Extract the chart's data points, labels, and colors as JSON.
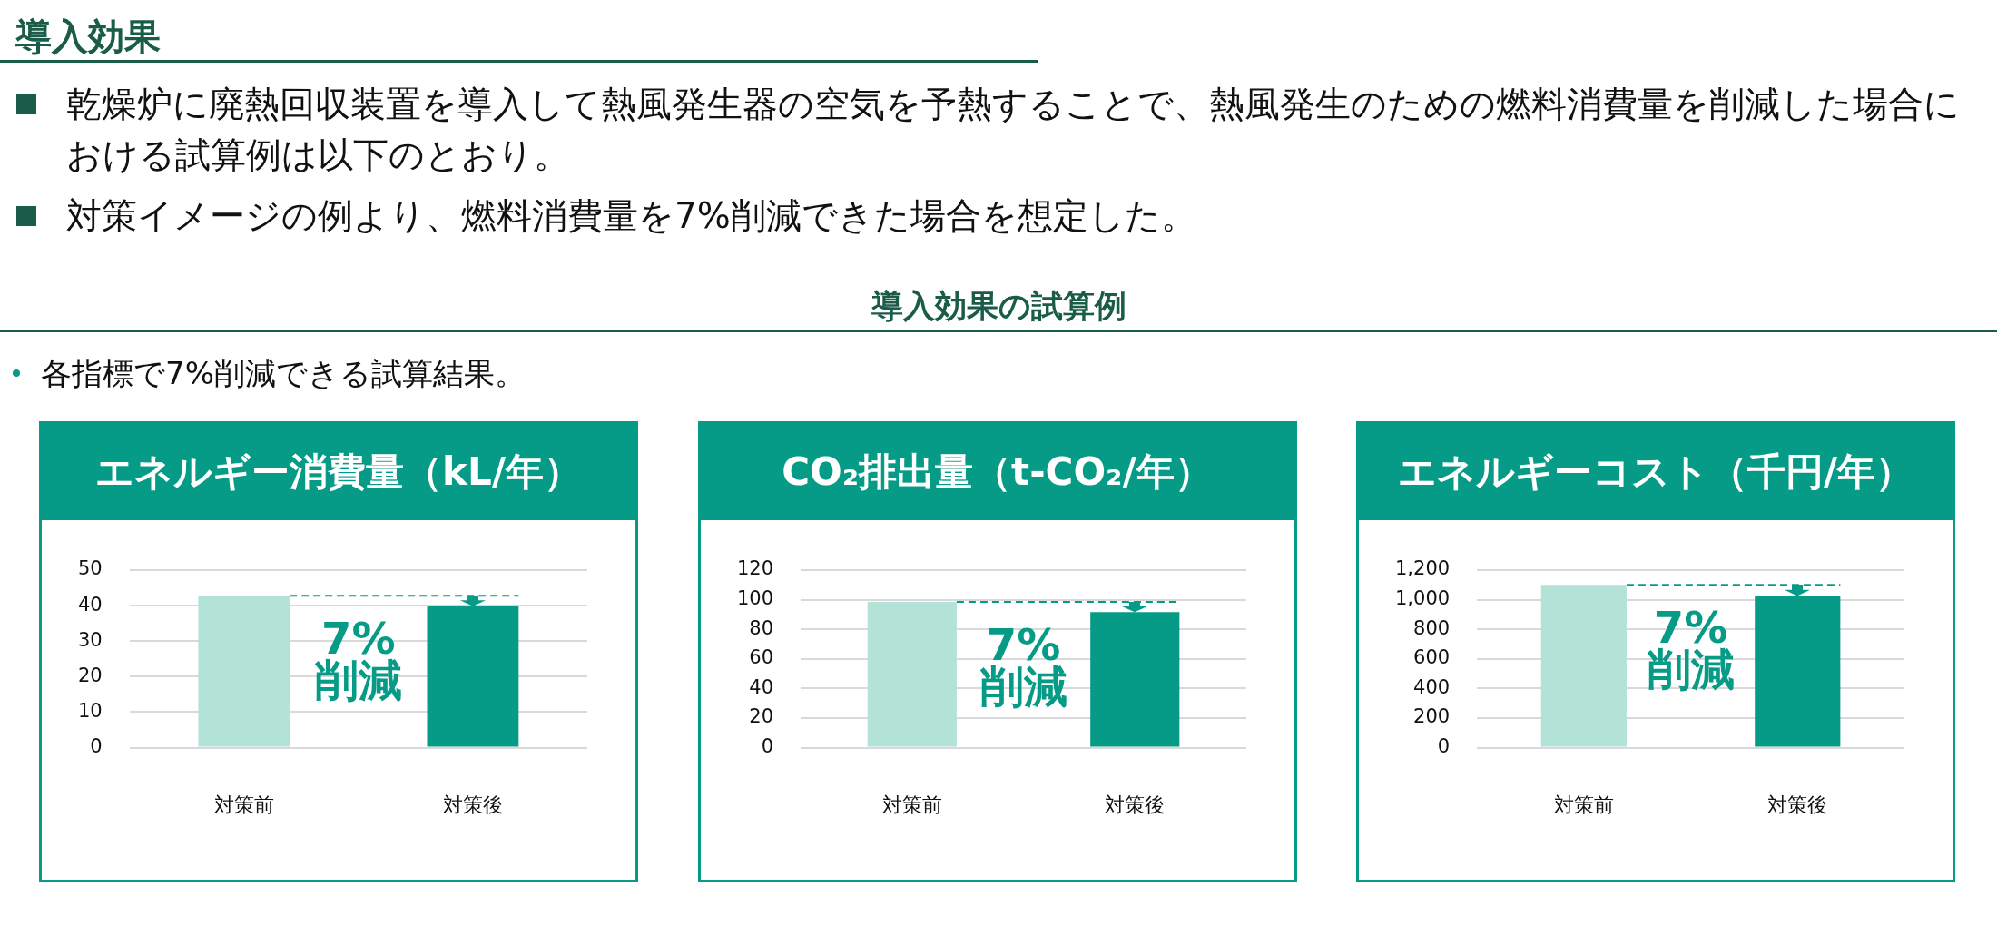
{
  "chart_data": [
    {
      "type": "other",
      "title": "導入効果",
      "annotations": [
        "乾燥炉に廃熱回収装置を導入して熱風発生器の空気を予熱することで、熱風発生のための燃料消費量を削減した場合における試算例は以下のとおり。",
        "対策イメージの例より、燃料消費量を7%削減できた場合を想定した。"
      ]
    },
    {
      "type": "other",
      "title": "導入効果の試算例",
      "annotations": [
        "各指標で7%削減できる試算結果。"
      ]
    },
    {
      "type": "bar",
      "title": "エネルギー消費量（kL/年）",
      "categories": [
        "対策前",
        "対策後"
      ],
      "values": [
        42.8,
        39.8
      ],
      "colors": [
        "#b2e3d6",
        "#069b87"
      ],
      "ylim": [
        0,
        50
      ],
      "yticks": [
        0,
        10,
        20,
        30,
        40,
        50
      ],
      "grid": "y",
      "ref_lines": [
        {
          "axis": "y",
          "value": 42.8,
          "color": "#069b87",
          "line_style": "dashed"
        }
      ],
      "annotations": [
        "7%",
        "削減"
      ]
    },
    {
      "type": "bar",
      "title": "CO₂排出量（t-CO₂/年）",
      "categories": [
        "対策前",
        "対策後"
      ],
      "values": [
        98.5,
        91.6
      ],
      "colors": [
        "#b2e3d6",
        "#069b87"
      ],
      "ylim": [
        0,
        120
      ],
      "yticks": [
        0,
        20,
        40,
        60,
        80,
        100,
        120
      ],
      "grid": "y",
      "ref_lines": [
        {
          "axis": "y",
          "value": 98.5,
          "color": "#069b87",
          "line_style": "dashed"
        }
      ],
      "annotations": [
        "7%",
        "削減"
      ]
    },
    {
      "type": "bar",
      "title": "エネルギーコスト（千円/年）",
      "categories": [
        "対策前",
        "対策後"
      ],
      "values": [
        1100,
        1023
      ],
      "colors": [
        "#b2e3d6",
        "#069b87"
      ],
      "ylim": [
        0,
        1200
      ],
      "yticks": [
        0,
        200,
        400,
        600,
        800,
        {
          "value": 1000,
          "label": "1,000"
        },
        {
          "value": 1200,
          "label": "1,200"
        }
      ],
      "grid": "y",
      "ref_lines": [
        {
          "axis": "y",
          "value": 1100,
          "color": "#069b87",
          "line_style": "dashed"
        }
      ],
      "annotations": [
        "7%",
        "削減"
      ]
    }
  ]
}
